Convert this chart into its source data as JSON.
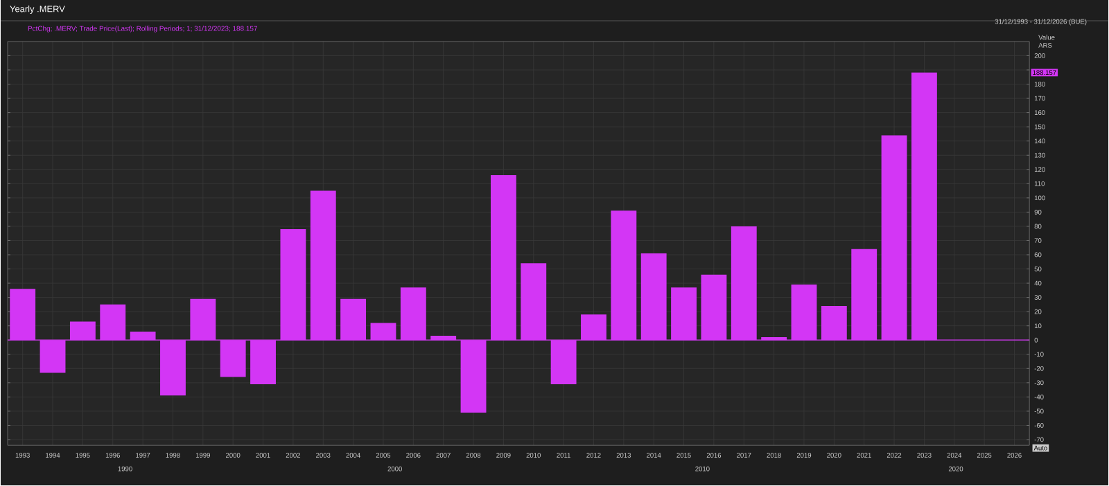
{
  "chart_data": {
    "type": "bar",
    "title": "Yearly .MERV",
    "subtitle": "PctChg; .MERV; Trade Price(Last); Rolling Periods; 1; 31/12/2023; 188.157",
    "ylabel": "Value ARS",
    "categories": [
      "1993",
      "1994",
      "1995",
      "1996",
      "1997",
      "1998",
      "1999",
      "2000",
      "2001",
      "2002",
      "2003",
      "2004",
      "2005",
      "2006",
      "2007",
      "2008",
      "2009",
      "2010",
      "2011",
      "2012",
      "2013",
      "2014",
      "2015",
      "2016",
      "2017",
      "2018",
      "2019",
      "2020",
      "2021",
      "2022",
      "2023",
      "2024",
      "2025",
      "2026"
    ],
    "values": [
      36,
      -23,
      13,
      25,
      6,
      -39,
      29,
      -26,
      -31,
      78,
      105,
      29,
      12,
      37,
      3,
      -51,
      116,
      54,
      -31,
      18,
      91,
      61,
      37,
      46,
      80,
      2,
      39,
      24,
      64,
      144,
      188.157,
      null,
      null,
      null
    ],
    "color": "#d336f5",
    "ylim": [
      -74,
      210
    ],
    "yticks": [
      -70,
      -60,
      -50,
      -40,
      -30,
      -20,
      -10,
      0,
      10,
      20,
      30,
      40,
      50,
      60,
      70,
      80,
      90,
      100,
      110,
      120,
      130,
      140,
      150,
      160,
      170,
      180,
      {
        "value": 190,
        "label": null
      },
      200
    ],
    "grid": true,
    "ref_lines": [
      {
        "axis": "y",
        "value": 0,
        "color": "#d336f5"
      }
    ],
    "annotations": [
      "31/12/1993 - 31/12/2026 (BUE)",
      "Auto",
      "1990",
      "2000",
      "2010",
      "2020",
      "188.157"
    ]
  }
}
